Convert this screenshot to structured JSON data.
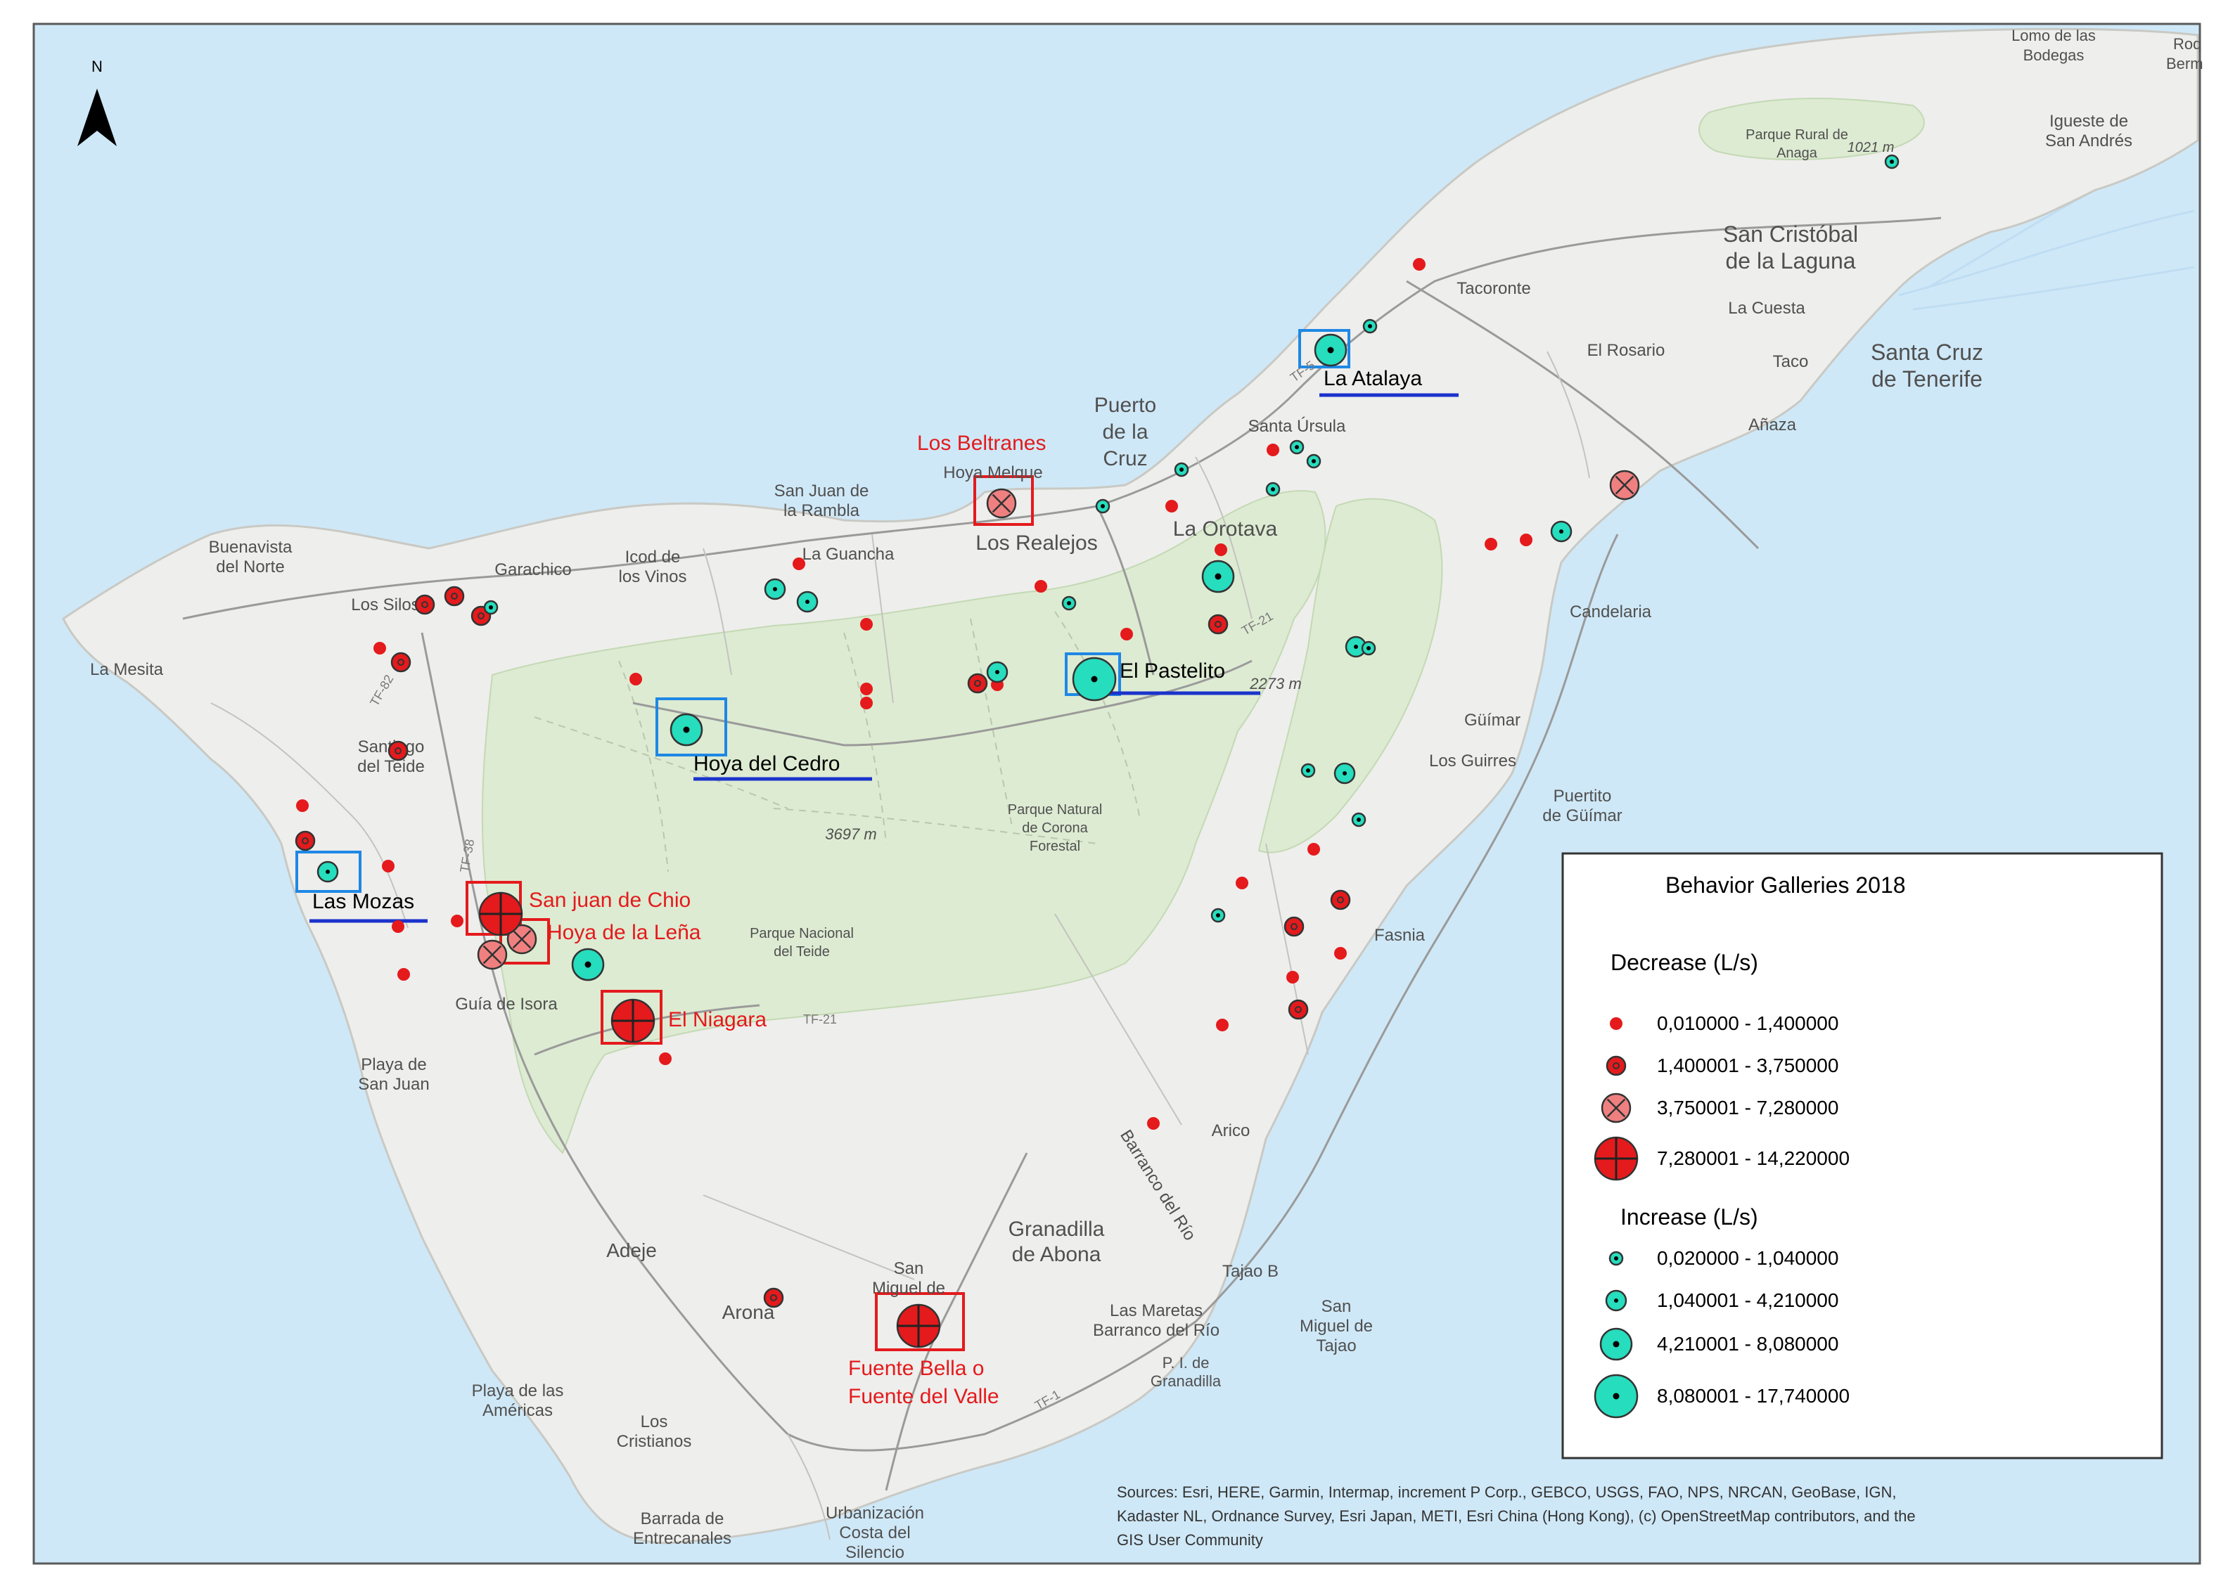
{
  "north": {
    "label": "N"
  },
  "place_labels": [
    {
      "id": "lomo-label",
      "text": "Lomo de las"
    },
    {
      "id": "bodegas-label",
      "text": "Bodegas"
    },
    {
      "id": "roq-label",
      "text": "Roq"
    },
    {
      "id": "berm-label",
      "text": "Berm"
    },
    {
      "id": "parque-anaga-1",
      "text": "Parque Rural de"
    },
    {
      "id": "parque-anaga-2",
      "text": "Anaga"
    },
    {
      "id": "height-1021",
      "text": "1021 m"
    },
    {
      "id": "igueste-1",
      "text": "Igueste de"
    },
    {
      "id": "igueste-2",
      "text": "San Andrés"
    },
    {
      "id": "sancristobal-1",
      "text": "San Cristóbal"
    },
    {
      "id": "sancristobal-2",
      "text": "de la Laguna"
    },
    {
      "id": "tacoronte",
      "text": "Tacoronte"
    },
    {
      "id": "la-cuesta",
      "text": "La Cuesta"
    },
    {
      "id": "el-rosario",
      "text": "El Rosario"
    },
    {
      "id": "taco",
      "text": "Taco"
    },
    {
      "id": "santacruz-1",
      "text": "Santa Cruz"
    },
    {
      "id": "santacruz-2",
      "text": "de Tenerife"
    },
    {
      "id": "anaza",
      "text": "Añaza"
    },
    {
      "id": "puerto-1",
      "text": "Puerto"
    },
    {
      "id": "puerto-2",
      "text": "de la"
    },
    {
      "id": "puerto-3",
      "text": "Cruz"
    },
    {
      "id": "santa-ursula",
      "text": "Santa Úrsula"
    },
    {
      "id": "hoya-melque",
      "text": "Hoya Melque"
    },
    {
      "id": "sanjuan-rambla-1",
      "text": "San Juan de"
    },
    {
      "id": "sanjuan-rambla-2",
      "text": "la Rambla"
    },
    {
      "id": "la-guancha",
      "text": "La Guancha"
    },
    {
      "id": "los-realejos",
      "text": "Los Realejos"
    },
    {
      "id": "la-orotava",
      "text": "La Orotava"
    },
    {
      "id": "buenavista-1",
      "text": "Buenavista"
    },
    {
      "id": "buenavista-2",
      "text": "del Norte"
    },
    {
      "id": "garachico",
      "text": "Garachico"
    },
    {
      "id": "icod-1",
      "text": "Icod de"
    },
    {
      "id": "icod-2",
      "text": "los Vinos"
    },
    {
      "id": "los-silos",
      "text": "Los Silos"
    },
    {
      "id": "la-mesita",
      "text": "La Mesita"
    },
    {
      "id": "candelaria",
      "text": "Candelaria"
    },
    {
      "id": "height-2273",
      "text": "2273 m"
    },
    {
      "id": "santiago-1",
      "text": "Santiago"
    },
    {
      "id": "santiago-2",
      "text": "del Teide"
    },
    {
      "id": "guimar",
      "text": "Güímar"
    },
    {
      "id": "los-guirres",
      "text": "Los Guirres"
    },
    {
      "id": "puertito-1",
      "text": "Puertito"
    },
    {
      "id": "puertito-2",
      "text": "de Güímar"
    },
    {
      "id": "height-3697",
      "text": "3697 m"
    },
    {
      "id": "corona-1",
      "text": "Parque Natural"
    },
    {
      "id": "corona-2",
      "text": "de Corona"
    },
    {
      "id": "corona-3",
      "text": "Forestal"
    },
    {
      "id": "teide-np-1",
      "text": "Parque Nacional"
    },
    {
      "id": "teide-np-2",
      "text": "del Teide"
    },
    {
      "id": "fasnia",
      "text": "Fasnia"
    },
    {
      "id": "guia-isora",
      "text": "Guía de Isora"
    },
    {
      "id": "playa-sanjuan-1",
      "text": "Playa de"
    },
    {
      "id": "playa-sanjuan-2",
      "text": "San Juan"
    },
    {
      "id": "arico",
      "text": "Arico"
    },
    {
      "id": "barranco",
      "text": "Barranco del Río"
    },
    {
      "id": "granadilla-1",
      "text": "Granadilla"
    },
    {
      "id": "granadilla-2",
      "text": "de Abona"
    },
    {
      "id": "adeje",
      "text": "Adeje"
    },
    {
      "id": "tajao-b",
      "text": "Tajao B"
    },
    {
      "id": "sanmiguel-tajao-1",
      "text": "San"
    },
    {
      "id": "sanmiguel-tajao-2",
      "text": "Miguel de"
    },
    {
      "id": "sanmiguel-tajao-3",
      "text": "Tajao"
    },
    {
      "id": "sanmiguel-abona-1",
      "text": "San"
    },
    {
      "id": "sanmiguel-abona-2",
      "text": "Miguel de"
    },
    {
      "id": "arona",
      "text": "Arona"
    },
    {
      "id": "las-maretas-1",
      "text": "Las Maretas"
    },
    {
      "id": "las-maretas-2",
      "text": "Barranco del Río"
    },
    {
      "id": "granadilla-pi-1",
      "text": "P. I. de"
    },
    {
      "id": "granadilla-pi-2",
      "text": "Granadilla"
    },
    {
      "id": "playa-americas-1",
      "text": "Playa de las"
    },
    {
      "id": "playa-americas-2",
      "text": "Américas"
    },
    {
      "id": "los-cristianos-1",
      "text": "Los"
    },
    {
      "id": "los-cristianos-2",
      "text": "Cristianos"
    },
    {
      "id": "barrada-1",
      "text": "Barrada de"
    },
    {
      "id": "barrada-2",
      "text": "Entrecanales"
    },
    {
      "id": "urbanizacion-1",
      "text": "Urbanización"
    },
    {
      "id": "urbanizacion-2",
      "text": "Costa del"
    },
    {
      "id": "urbanizacion-3",
      "text": "Silencio"
    },
    {
      "id": "road-tf5",
      "text": "TF-5"
    },
    {
      "id": "road-tf82",
      "text": "TF-82"
    },
    {
      "id": "road-tf38",
      "text": "TF-38"
    },
    {
      "id": "road-tf21a",
      "text": "TF-21"
    },
    {
      "id": "road-tf21b",
      "text": "TF-21"
    },
    {
      "id": "road-tf1",
      "text": "TF-1"
    }
  ],
  "highlight_labels": [
    {
      "id": "los-beltranes",
      "text": "Los Beltranes"
    },
    {
      "id": "hoya-del-cedro",
      "text": "Hoya del Cedro"
    },
    {
      "id": "el-pastelito",
      "text": "El Pastelito"
    },
    {
      "id": "la-atalaya",
      "text": "La Atalaya"
    },
    {
      "id": "las-mozas",
      "text": "Las Mozas"
    },
    {
      "id": "san-juan-chio",
      "text": "San juan de Chio"
    },
    {
      "id": "hoya-de-la-lena",
      "text": "Hoya de la Leña"
    },
    {
      "id": "el-niagara",
      "text": "El Niagara"
    },
    {
      "id": "fuente-bella-1",
      "text": "Fuente Bella o"
    },
    {
      "id": "fuente-bella-2",
      "text": "Fuente del Valle"
    }
  ],
  "legend": {
    "title": "Behavior Galleries  2018",
    "decrease_header": "Decrease (L/s)",
    "decrease_ranges": [
      "0,010000 - 1,400000",
      "1,400001 - 3,750000",
      "3,750001 - 7,280000",
      "7,280001 - 14,220000"
    ],
    "increase_header": "Increase (L/s)",
    "increase_ranges": [
      "0,020000 - 1,040000",
      "1,040001 - 4,210000",
      "4,210001 - 8,080000",
      "8,080001 - 17,740000"
    ]
  },
  "sources": "Sources: Esri, HERE, Garmin, Intermap, increment P Corp., GEBCO, USGS, FAO, NPS, NRCAN, GeoBase, IGN, Kadaster NL, Ordnance Survey, Esri Japan, METI, Esri China (Hong Kong), (c) OpenStreetMap contributors, and the GIS User Community",
  "colors": {
    "sea": "#CFE8F7",
    "land": "#EEEEEC",
    "park": "#DDEBD2",
    "decrease": "#E41A1C",
    "increase": "#26DDBE",
    "highlight_red": "#E41A1C",
    "highlight_blue": "#1E88E5",
    "underline_blue": "#1A33CC"
  },
  "markers": [
    {
      "kind": "dec",
      "cls": 1
    },
    {
      "kind": "dec",
      "cls": 2
    },
    {
      "kind": "dec",
      "cls": 2
    },
    {
      "kind": "dec",
      "cls": 2
    },
    {
      "kind": "dec",
      "cls": 1
    },
    {
      "kind": "dec",
      "cls": 2
    },
    {
      "kind": "dec",
      "cls": 2
    },
    {
      "kind": "dec",
      "cls": 1
    },
    {
      "kind": "dec",
      "cls": 2
    },
    {
      "kind": "dec",
      "cls": 1
    },
    {
      "kind": "dec",
      "cls": 1
    },
    {
      "kind": "dec",
      "cls": 1
    },
    {
      "kind": "dec",
      "cls": 1
    },
    {
      "kind": "dec",
      "cls": 1
    },
    {
      "kind": "dec",
      "cls": 1
    },
    {
      "kind": "dec",
      "cls": 1
    },
    {
      "kind": "dec",
      "cls": 1
    },
    {
      "kind": "dec",
      "cls": 1
    },
    {
      "kind": "dec",
      "cls": 1
    },
    {
      "kind": "dec",
      "cls": 1
    },
    {
      "kind": "dec",
      "cls": 1
    },
    {
      "kind": "dec",
      "cls": 2
    },
    {
      "kind": "dec",
      "cls": 1
    },
    {
      "kind": "dec",
      "cls": 2
    },
    {
      "kind": "dec",
      "cls": 1
    },
    {
      "kind": "dec",
      "cls": 1
    },
    {
      "kind": "dec",
      "cls": 1
    },
    {
      "kind": "dec",
      "cls": 1
    },
    {
      "kind": "dec",
      "cls": 1
    },
    {
      "kind": "dec",
      "cls": 1
    },
    {
      "kind": "dec",
      "cls": 2
    },
    {
      "kind": "dec",
      "cls": 1
    },
    {
      "kind": "dec",
      "cls": 2
    },
    {
      "kind": "dec",
      "cls": 2
    },
    {
      "kind": "dec",
      "cls": 1
    },
    {
      "kind": "dec",
      "cls": 1
    },
    {
      "kind": "dec",
      "cls": 1
    },
    {
      "kind": "dec",
      "cls": 2
    },
    {
      "kind": "dec",
      "cls": 3
    },
    {
      "kind": "dec",
      "cls": 3
    },
    {
      "kind": "dec",
      "cls": 3
    },
    {
      "kind": "dec",
      "cls": 3
    },
    {
      "kind": "dec",
      "cls": 4
    },
    {
      "kind": "dec",
      "cls": 4
    },
    {
      "kind": "dec",
      "cls": 4
    },
    {
      "kind": "dec",
      "cls": 1
    },
    {
      "kind": "inc",
      "cls": 1
    },
    {
      "kind": "inc",
      "cls": 1
    },
    {
      "kind": "inc",
      "cls": 1
    },
    {
      "kind": "inc",
      "cls": 1
    },
    {
      "kind": "inc",
      "cls": 1
    },
    {
      "kind": "inc",
      "cls": 1
    },
    {
      "kind": "inc",
      "cls": 1
    },
    {
      "kind": "inc",
      "cls": 2
    },
    {
      "kind": "inc",
      "cls": 2
    },
    {
      "kind": "inc",
      "cls": 1
    },
    {
      "kind": "inc",
      "cls": 1
    },
    {
      "kind": "inc",
      "cls": 2
    },
    {
      "kind": "inc",
      "cls": 2
    },
    {
      "kind": "inc",
      "cls": 1
    },
    {
      "kind": "inc",
      "cls": 1
    },
    {
      "kind": "inc",
      "cls": 2
    },
    {
      "kind": "inc",
      "cls": 1
    },
    {
      "kind": "inc",
      "cls": 1
    },
    {
      "kind": "inc",
      "cls": 1
    },
    {
      "kind": "inc",
      "cls": 1
    },
    {
      "kind": "inc",
      "cls": 3
    },
    {
      "kind": "inc",
      "cls": 3
    },
    {
      "kind": "inc",
      "cls": 3
    },
    {
      "kind": "inc",
      "cls": 4
    },
    {
      "kind": "inc",
      "cls": 3
    },
    {
      "kind": "inc",
      "cls": 2
    },
    {
      "kind": "inc",
      "cls": 2
    }
  ]
}
